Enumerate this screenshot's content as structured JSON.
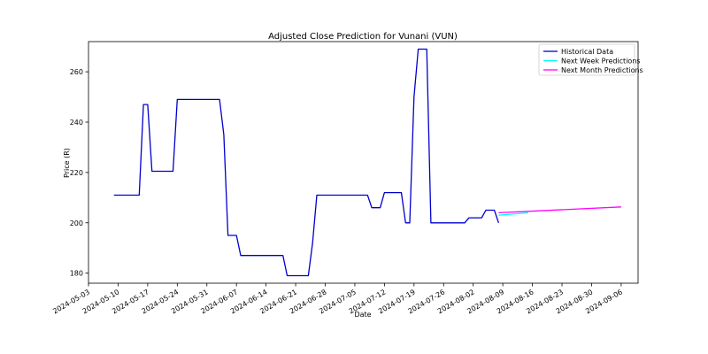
{
  "chart_data": {
    "type": "line",
    "title": "Adjusted Close Prediction for Vunani (VUN)",
    "xlabel": "Date",
    "ylabel": "Price (R)",
    "x_range": [
      "2024-05-03",
      "2024-09-10"
    ],
    "ylim": [
      176,
      272
    ],
    "x_ticks": [
      "2024-05-03",
      "2024-05-10",
      "2024-05-17",
      "2024-05-24",
      "2024-05-31",
      "2024-06-07",
      "2024-06-14",
      "2024-06-21",
      "2024-06-28",
      "2024-07-05",
      "2024-07-12",
      "2024-07-19",
      "2024-07-26",
      "2024-08-02",
      "2024-08-09",
      "2024-08-16",
      "2024-08-23",
      "2024-08-30",
      "2024-09-06"
    ],
    "y_ticks": [
      180,
      200,
      220,
      240,
      260
    ],
    "grid": false,
    "legend_position": "top-right",
    "series": [
      {
        "name": "Historical Data",
        "color": "#0000cd",
        "points": [
          [
            "2024-05-09",
            211
          ],
          [
            "2024-05-15",
            211
          ],
          [
            "2024-05-16",
            247
          ],
          [
            "2024-05-17",
            247
          ],
          [
            "2024-05-18",
            220.5
          ],
          [
            "2024-05-23",
            220.5
          ],
          [
            "2024-05-24",
            249
          ],
          [
            "2024-06-03",
            249
          ],
          [
            "2024-06-04",
            235
          ],
          [
            "2024-06-05",
            195
          ],
          [
            "2024-06-07",
            195
          ],
          [
            "2024-06-08",
            187
          ],
          [
            "2024-06-18",
            187
          ],
          [
            "2024-06-19",
            179
          ],
          [
            "2024-06-24",
            179
          ],
          [
            "2024-06-25",
            192
          ],
          [
            "2024-06-26",
            211
          ],
          [
            "2024-07-08",
            211
          ],
          [
            "2024-07-09",
            206
          ],
          [
            "2024-07-11",
            206
          ],
          [
            "2024-07-12",
            212
          ],
          [
            "2024-07-16",
            212
          ],
          [
            "2024-07-17",
            200
          ],
          [
            "2024-07-18",
            200
          ],
          [
            "2024-07-19",
            250
          ],
          [
            "2024-07-20",
            269
          ],
          [
            "2024-07-22",
            269
          ],
          [
            "2024-07-23",
            200
          ],
          [
            "2024-07-31",
            200
          ],
          [
            "2024-08-01",
            202
          ],
          [
            "2024-08-04",
            202
          ],
          [
            "2024-08-05",
            205
          ],
          [
            "2024-08-07",
            205
          ],
          [
            "2024-08-08",
            200
          ]
        ]
      },
      {
        "name": "Next Week Predictions",
        "color": "#00ffff",
        "points": [
          [
            "2024-08-08",
            203
          ],
          [
            "2024-08-15",
            204
          ]
        ]
      },
      {
        "name": "Next Month Predictions",
        "color": "#ff00ff",
        "points": [
          [
            "2024-08-08",
            204
          ],
          [
            "2024-09-06",
            206.3
          ]
        ]
      }
    ]
  }
}
